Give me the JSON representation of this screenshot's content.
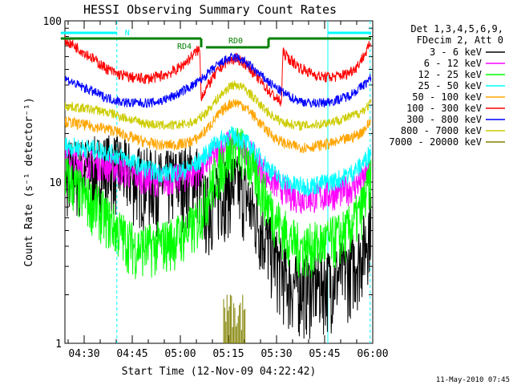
{
  "chart_data": {
    "type": "line",
    "title": "HESSI Observing Summary Count Rates",
    "ylabel": "Count Rate (s⁻¹ detector⁻¹)",
    "xlabel": "Start Time (12-Nov-09 04:22:42)",
    "footer": "11-May-2010 07:45",
    "y_scale": "log",
    "ylim": [
      1,
      100
    ],
    "y_ticks": [
      {
        "value": 1,
        "label": "1"
      },
      {
        "value": 10,
        "label": "10"
      },
      {
        "value": 100,
        "label": "100"
      }
    ],
    "xlim_min": [
      262.7,
      360
    ],
    "x_ticks": [
      {
        "value": 270,
        "label": "04:30"
      },
      {
        "value": 285,
        "label": "04:45"
      },
      {
        "value": 300,
        "label": "05:00"
      },
      {
        "value": 315,
        "label": "05:15"
      },
      {
        "value": 330,
        "label": "05:30"
      },
      {
        "value": 345,
        "label": "05:45"
      },
      {
        "value": 360,
        "label": "06:00"
      }
    ],
    "legend_title": [
      "Det 1,3,4,5,6,9,",
      "FDecim 2, Att 0"
    ],
    "legend_position": "right",
    "series": [
      {
        "name": "3 - 6 keV",
        "color": "#000000",
        "x": [
          262.7,
          268,
          274,
          279,
          283,
          286,
          290,
          294,
          298,
          302,
          305,
          308,
          311,
          314,
          316,
          318,
          320,
          322,
          325,
          328,
          331,
          334,
          337,
          340,
          344,
          348,
          352,
          356,
          358,
          359.5
        ],
        "y": [
          12,
          12,
          12.5,
          13,
          12,
          11,
          10.5,
          10,
          10.5,
          11,
          11.5,
          7,
          8,
          9.5,
          10,
          9.5,
          9,
          7,
          5.5,
          4,
          3,
          2.4,
          2.3,
          2.3,
          2.4,
          2.6,
          2.9,
          3.6,
          4.5,
          6.5
        ]
      },
      {
        "name": "6 - 12 keV",
        "color": "#ff00ff",
        "x": [
          262.7,
          268,
          274,
          279,
          283,
          286,
          290,
          294,
          298,
          302,
          305,
          308,
          311,
          314,
          316,
          318,
          320,
          322,
          325,
          328,
          331,
          334,
          337,
          340,
          344,
          348,
          352,
          356,
          358,
          359.5
        ],
        "y": [
          14,
          13.5,
          13,
          12.5,
          11.5,
          11,
          10.5,
          10.2,
          10.5,
          11,
          11.5,
          13,
          15,
          17,
          18,
          17.5,
          16.5,
          15,
          12.5,
          10.5,
          9.5,
          8.5,
          8,
          8,
          8.2,
          8.5,
          9,
          10,
          11,
          12.5
        ]
      },
      {
        "name": "12 - 25 keV",
        "color": "#00ff00",
        "x": [
          262.7,
          268,
          274,
          279,
          283,
          286,
          290,
          294,
          298,
          302,
          305,
          308,
          311,
          314,
          316,
          318,
          320,
          322,
          325,
          328,
          331,
          334,
          337,
          340,
          344,
          348,
          352,
          356,
          358,
          359.5
        ],
        "y": [
          12,
          9,
          7,
          5.5,
          4.5,
          4,
          4,
          4.2,
          4.5,
          5,
          5.5,
          8,
          11,
          14,
          16,
          16.5,
          15.5,
          13,
          9.5,
          7,
          5.5,
          4.5,
          4,
          4,
          4.2,
          4.5,
          5,
          6.5,
          8.5,
          11
        ]
      },
      {
        "name": "25 - 50 keV",
        "color": "#00ffff",
        "x": [
          262.7,
          268,
          274,
          279,
          283,
          286,
          290,
          294,
          298,
          302,
          305,
          308,
          311,
          314,
          316,
          318,
          320,
          322,
          325,
          328,
          331,
          334,
          337,
          340,
          344,
          348,
          352,
          356,
          358,
          359.5
        ],
        "y": [
          17,
          16.5,
          16,
          15,
          14,
          13,
          12,
          11.5,
          11.5,
          12,
          13,
          15,
          17.5,
          19,
          19.5,
          19,
          18,
          16.5,
          14,
          12,
          10.5,
          9.8,
          9.5,
          9.5,
          9.8,
          10.2,
          11,
          12.5,
          14,
          16
        ]
      },
      {
        "name": "50 - 100 keV",
        "color": "#ffa500",
        "x": [
          262.7,
          268,
          274,
          279,
          283,
          286,
          290,
          294,
          298,
          302,
          305,
          308,
          311,
          314,
          316,
          318,
          320,
          322,
          325,
          328,
          331,
          334,
          337,
          340,
          344,
          348,
          352,
          356,
          358,
          359.5
        ],
        "y": [
          24,
          23,
          22,
          21,
          19.5,
          18.5,
          17.5,
          17,
          17,
          17.5,
          18.5,
          21,
          25,
          29,
          31,
          31,
          29.5,
          27,
          23,
          20,
          18,
          17,
          16.5,
          16.5,
          17,
          17.5,
          18.5,
          20,
          22,
          24
        ]
      },
      {
        "name": "100 - 300 keV",
        "color": "#ff0000",
        "x": [
          262.7,
          265,
          268,
          272,
          276,
          280,
          284,
          287,
          290,
          293,
          296,
          299,
          302,
          304,
          306,
          306.5,
          308,
          310,
          312,
          314,
          316,
          318,
          320,
          322,
          324,
          326,
          328,
          330,
          331.5,
          332,
          334,
          337,
          340,
          344,
          348,
          352,
          355,
          357,
          358.5,
          359.5
        ],
        "y": [
          78,
          74,
          68,
          60,
          52,
          47,
          45,
          44,
          44,
          45,
          47,
          50,
          56,
          62,
          67,
          34,
          38,
          44,
          50,
          55,
          58,
          58,
          55,
          50,
          45,
          40,
          36,
          33,
          31,
          64,
          58,
          52,
          48,
          45,
          45,
          47,
          52,
          60,
          67,
          75
        ]
      },
      {
        "name": "300 - 800 keV",
        "color": "#0000ff",
        "x": [
          262.7,
          265,
          268,
          272,
          276,
          280,
          284,
          287,
          290,
          293,
          296,
          299,
          302,
          305,
          308,
          311,
          314,
          316,
          318,
          320,
          322,
          325,
          328,
          331,
          334,
          337,
          340,
          344,
          348,
          352,
          355,
          357,
          358.5,
          359.5
        ],
        "y": [
          45,
          43,
          40,
          37,
          34,
          32,
          31,
          31,
          31,
          31.5,
          33,
          35,
          38,
          41,
          46,
          52,
          57,
          59,
          59,
          56,
          52,
          46,
          41,
          37,
          34,
          32,
          31,
          31,
          32,
          34,
          37,
          40,
          42,
          45
        ]
      },
      {
        "name": "800 - 7000 keV",
        "color": "#cccc00",
        "x": [
          262.7,
          268,
          274,
          279,
          283,
          286,
          290,
          294,
          298,
          302,
          305,
          308,
          311,
          314,
          316,
          318,
          320,
          322,
          325,
          328,
          331,
          334,
          337,
          340,
          344,
          348,
          352,
          356,
          358,
          359.5
        ],
        "y": [
          30,
          29,
          28,
          26.5,
          25,
          24,
          23,
          22.5,
          22.5,
          23,
          24,
          27,
          32,
          37,
          40,
          40,
          38,
          35,
          30,
          26.5,
          24,
          23,
          22.5,
          22.5,
          23,
          24,
          25,
          27,
          29,
          31
        ]
      },
      {
        "name": "7000 - 20000 keV",
        "color": "#808000",
        "x": [
          313.5,
          315,
          317,
          319,
          320.5
        ],
        "y": [
          1,
          1,
          1,
          1,
          1
        ],
        "spikes_to": [
          2,
          2,
          2,
          2,
          2
        ]
      }
    ],
    "annotations": [
      {
        "label": "N",
        "type": "cyan-bar",
        "segments": [
          [
            262.7,
            280.2
          ],
          [
            346,
            359.5
          ]
        ]
      },
      {
        "label": "RD0",
        "type": "green-bar",
        "segments": [
          [
            308,
            327.5
          ]
        ]
      },
      {
        "label": "RD4",
        "type": "green-bar",
        "segments": [
          [
            262.7,
            306.5
          ],
          [
            327.5,
            359.5
          ]
        ]
      }
    ],
    "vertical_markers": [
      {
        "x": 280.2,
        "style": "dashed",
        "color": "#00ffff"
      },
      {
        "x": 346,
        "style": "solid",
        "color": "#00ffff"
      },
      {
        "x": 359.2,
        "style": "dashed",
        "color": "#00ffff"
      },
      {
        "x": 262.7,
        "style": "solid",
        "color": "#00ffff"
      }
    ]
  }
}
